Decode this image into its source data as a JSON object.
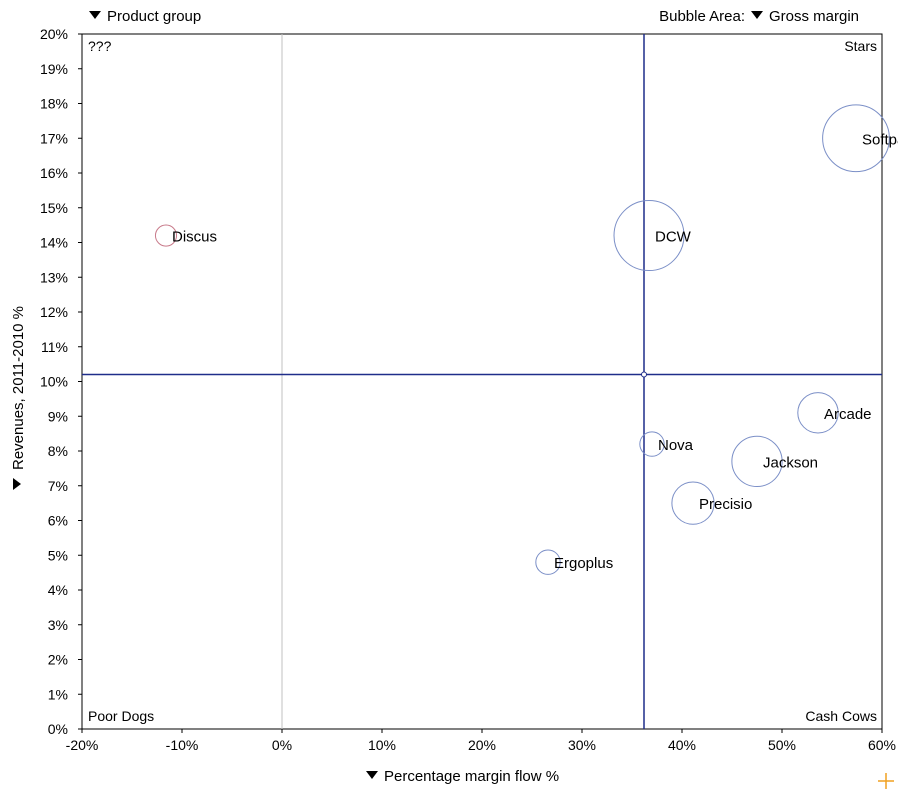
{
  "header": {
    "group_selector": "Product group",
    "bubble_area_label": "Bubble Area:",
    "bubble_area_selector": "Gross margin"
  },
  "chart_data": {
    "type": "scatter",
    "xlabel": "Percentage margin flow %",
    "ylabel": "Revenues, 2011-2010 %",
    "xlim": [
      -20,
      60
    ],
    "ylim": [
      0,
      20
    ],
    "x_ticks": [
      "-20%",
      "-10%",
      "0%",
      "10%",
      "20%",
      "30%",
      "40%",
      "50%",
      "60%"
    ],
    "y_ticks": [
      "0%",
      "1%",
      "2%",
      "3%",
      "4%",
      "5%",
      "6%",
      "7%",
      "8%",
      "9%",
      "10%",
      "11%",
      "12%",
      "13%",
      "14%",
      "15%",
      "16%",
      "17%",
      "18%",
      "19%",
      "20%"
    ],
    "quadrant_labels": {
      "top_left": "???",
      "top_right": "Stars",
      "bottom_left": "Poor Dogs",
      "bottom_right": "Cash Cows"
    },
    "reference_lines": {
      "x": 36.2,
      "y": 10.2
    },
    "zero_line_x": 0,
    "points": [
      {
        "label": "Softpad",
        "x": 57.4,
        "y": 17.0,
        "size": 30,
        "color": "#7b8fc7"
      },
      {
        "label": "DCW",
        "x": 36.7,
        "y": 14.2,
        "size": 33,
        "color": "#7b8fc7"
      },
      {
        "label": "Discus",
        "x": -11.6,
        "y": 14.2,
        "size": 3,
        "color": "#c87a8a"
      },
      {
        "label": "Arcade",
        "x": 53.6,
        "y": 9.1,
        "size": 11,
        "color": "#7b8fc7"
      },
      {
        "label": "Nova",
        "x": 37.0,
        "y": 8.2,
        "size": 4,
        "color": "#7b8fc7"
      },
      {
        "label": "Jackson",
        "x": 47.5,
        "y": 7.7,
        "size": 17,
        "color": "#7b8fc7"
      },
      {
        "label": "Precisio",
        "x": 41.1,
        "y": 6.5,
        "size": 12,
        "color": "#7b8fc7"
      },
      {
        "label": "Ergoplus",
        "x": 26.6,
        "y": 4.8,
        "size": 4,
        "color": "#7b8fc7"
      }
    ],
    "colors": {
      "reference_line": "#1f2d8a",
      "zero_line": "#c0c0c0",
      "frame": "#000000",
      "corner_marker": "#f0a020"
    }
  }
}
